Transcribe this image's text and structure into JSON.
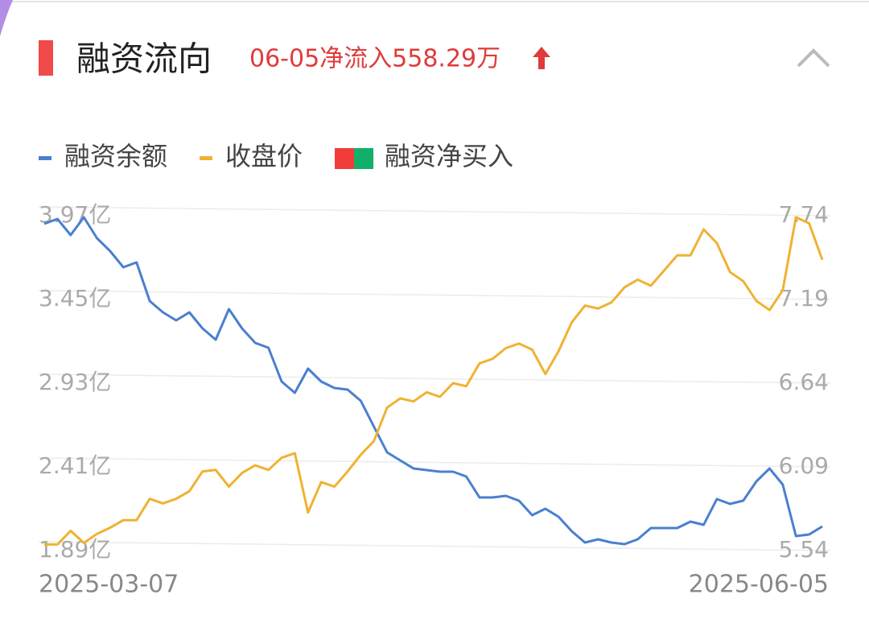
{
  "header": {
    "title": "融资流向",
    "subtitle": "06-05净流入558.29万"
  },
  "chart_data": {
    "type": "line",
    "categories": [
      "2025-03-07",
      null,
      null,
      null,
      null,
      null,
      null,
      null,
      null,
      null,
      null,
      null,
      null,
      null,
      null,
      null,
      null,
      null,
      null,
      null,
      null,
      null,
      null,
      null,
      null,
      null,
      null,
      null,
      null,
      null,
      null,
      null,
      null,
      null,
      null,
      null,
      null,
      null,
      null,
      null,
      null,
      null,
      null,
      null,
      null,
      null,
      null,
      null,
      null,
      null,
      null,
      null,
      null,
      null,
      null,
      null,
      null,
      null,
      null,
      "2025-06-05"
    ],
    "series": [
      {
        "name": "融资余额",
        "color": "#4a7fd0",
        "values": [
          3.92,
          3.95,
          3.85,
          3.96,
          3.83,
          3.75,
          3.65,
          3.68,
          3.44,
          3.37,
          3.32,
          3.37,
          3.27,
          3.2,
          3.39,
          3.27,
          3.18,
          3.15,
          2.94,
          2.87,
          3.02,
          2.94,
          2.9,
          2.89,
          2.82,
          2.66,
          2.5,
          2.45,
          2.4,
          2.39,
          2.38,
          2.38,
          2.35,
          2.22,
          2.22,
          2.23,
          2.2,
          2.11,
          2.15,
          2.1,
          2.01,
          1.94,
          1.96,
          1.94,
          1.93,
          1.96,
          2.03,
          2.03,
          2.03,
          2.07,
          2.05,
          2.21,
          2.18,
          2.2,
          2.32,
          2.4,
          2.3,
          1.98,
          1.99,
          2.04
        ]
      },
      {
        "name": "收盘价",
        "color": "#f0b232",
        "axis": "y2",
        "values": [
          5.58,
          5.58,
          5.67,
          5.59,
          5.65,
          5.69,
          5.74,
          5.74,
          5.88,
          5.85,
          5.88,
          5.93,
          6.06,
          6.07,
          5.96,
          6.05,
          6.1,
          6.07,
          6.15,
          6.18,
          5.79,
          5.99,
          5.96,
          6.06,
          6.17,
          6.26,
          6.48,
          6.54,
          6.52,
          6.58,
          6.55,
          6.64,
          6.62,
          6.77,
          6.8,
          6.87,
          6.9,
          6.86,
          6.7,
          6.85,
          7.04,
          7.15,
          7.13,
          7.17,
          7.27,
          7.32,
          7.28,
          7.38,
          7.48,
          7.48,
          7.65,
          7.56,
          7.37,
          7.31,
          7.18,
          7.12,
          7.25,
          7.73,
          7.69,
          7.45
        ]
      }
    ],
    "extra_legend": {
      "name": "融资净买入",
      "colors": [
        "#f23c3c",
        "#10b06a"
      ]
    },
    "ylim": [
      1.89,
      3.97
    ],
    "yticks": [
      {
        "value": 3.97,
        "label": "3.97亿"
      },
      {
        "value": 3.45,
        "label": "3.45亿"
      },
      {
        "value": 2.93,
        "label": "2.93亿"
      },
      {
        "value": 2.41,
        "label": "2.41亿"
      },
      {
        "value": 1.89,
        "label": "1.89亿"
      }
    ],
    "y2lim": [
      5.54,
      7.74
    ],
    "y2ticks": [
      7.74,
      7.19,
      6.64,
      6.09,
      5.54
    ],
    "grid": true
  }
}
